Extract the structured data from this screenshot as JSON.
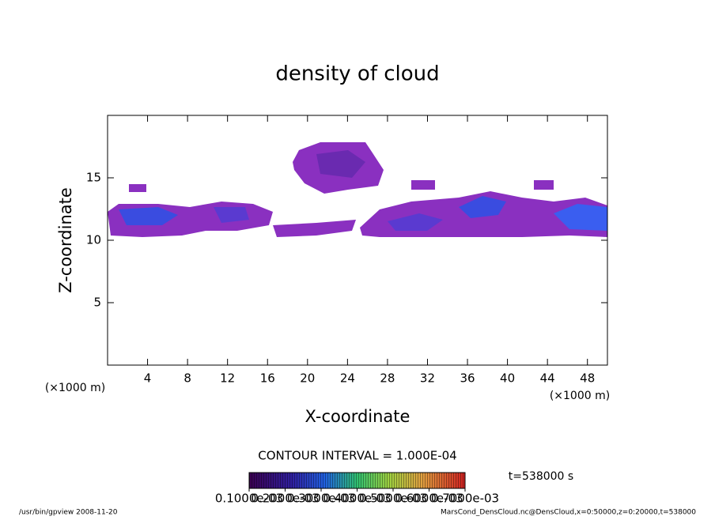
{
  "chart_data": {
    "type": "contour",
    "title": "density of cloud",
    "x_label": "X-coordinate",
    "y_label": "Z-coordinate",
    "x_unit_left": "(×1000 m)",
    "x_unit_right": "(×1000 m)",
    "xlim": [
      0,
      50
    ],
    "ylim": [
      0,
      20
    ],
    "xticks": [
      4,
      8,
      12,
      16,
      20,
      24,
      28,
      32,
      36,
      40,
      44,
      48
    ],
    "yticks": [
      5,
      10,
      15
    ],
    "contour_interval": "CONTOUR INTERVAL = 1.000E-04",
    "time_label": "t=538000 s",
    "colorbar_lim": [
      0.0001,
      0.0007
    ],
    "colorbar_ticks": [
      {
        "value": 0.0001,
        "label": "0.1000e-03"
      },
      {
        "value": 0.0002,
        "label": "0.2000e-03"
      },
      {
        "value": 0.0003,
        "label": "0.3000e-03"
      },
      {
        "value": 0.0004,
        "label": "0.4000e-03"
      },
      {
        "value": 0.0005,
        "label": "0.5000e-03"
      },
      {
        "value": 0.0006,
        "label": "0.6000e-03"
      },
      {
        "value": 0.0007,
        "label": "0.7000e-03"
      }
    ],
    "footer_left": "/usr/bin/gpview  2008-11-20",
    "footer_right": "MarsCond_DensCloud.nc@DensCloud,x=0:50000,z=0:20000,t=538000"
  }
}
